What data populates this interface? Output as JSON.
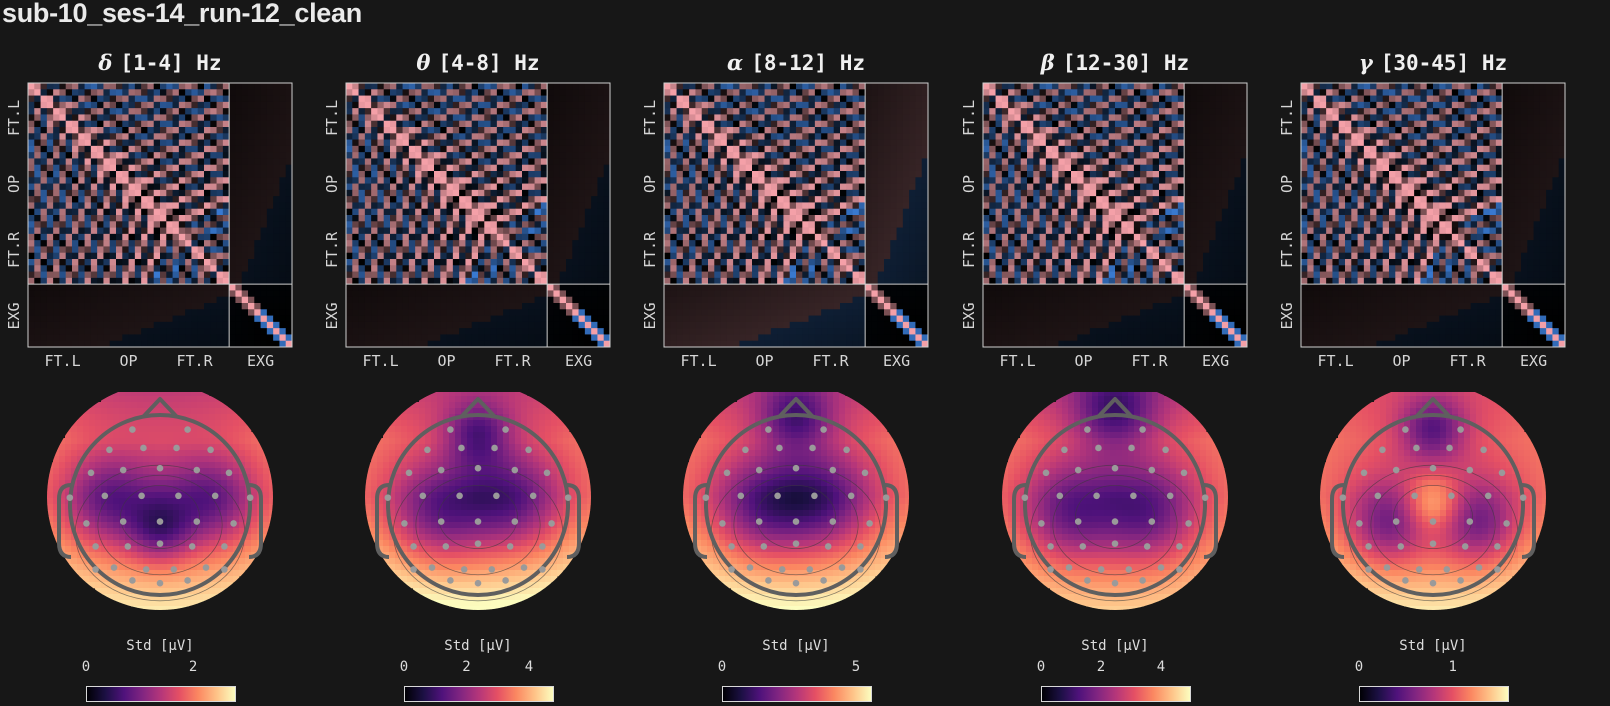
{
  "title": "sub-10_ses-14_run-12_clean",
  "colors": {
    "background": "#171717",
    "corr_positive": "#f4a0a8",
    "corr_negative": "#3f86e6",
    "separator": "#cfcfcf"
  },
  "chart_data": [
    {
      "type": "heatmap",
      "greek": "δ",
      "band": "[1-4] Hz",
      "y_groups": [
        "FT.L",
        "OP",
        "FT.R",
        "EXG"
      ],
      "x_groups": [
        "FT.L",
        "OP",
        "FT.R",
        "EXG"
      ],
      "n_eeg_channels": 32,
      "n_exg_channels": 10
    },
    {
      "type": "heatmap",
      "greek": "θ",
      "band": "[4-8] Hz",
      "y_groups": [
        "FT.L",
        "OP",
        "FT.R",
        "EXG"
      ],
      "x_groups": [
        "FT.L",
        "OP",
        "FT.R",
        "EXG"
      ],
      "n_eeg_channels": 32,
      "n_exg_channels": 10
    },
    {
      "type": "heatmap",
      "greek": "α",
      "band": "[8-12] Hz",
      "y_groups": [
        "FT.L",
        "OP",
        "FT.R",
        "EXG"
      ],
      "x_groups": [
        "FT.L",
        "OP",
        "FT.R",
        "EXG"
      ],
      "n_eeg_channels": 32,
      "n_exg_channels": 10
    },
    {
      "type": "heatmap",
      "greek": "β",
      "band": "[12-30] Hz",
      "y_groups": [
        "FT.L",
        "OP",
        "FT.R",
        "EXG"
      ],
      "x_groups": [
        "FT.L",
        "OP",
        "FT.R",
        "EXG"
      ],
      "n_eeg_channels": 32,
      "n_exg_channels": 10
    },
    {
      "type": "heatmap",
      "greek": "γ",
      "band": "[30-45] Hz",
      "y_groups": [
        "FT.L",
        "OP",
        "FT.R",
        "EXG"
      ],
      "x_groups": [
        "FT.L",
        "OP",
        "FT.R",
        "EXG"
      ],
      "n_eeg_channels": 32,
      "n_exg_channels": 10
    }
  ],
  "topomaps": [
    {
      "colorbar_label": "Std [µV]",
      "ticks": [
        {
          "label": "0",
          "value": 0
        },
        {
          "label": "2",
          "value": 2
        }
      ],
      "vmax": 2.8
    },
    {
      "colorbar_label": "Std [µV]",
      "ticks": [
        {
          "label": "0",
          "value": 0
        },
        {
          "label": "2",
          "value": 2
        },
        {
          "label": "4",
          "value": 4
        }
      ],
      "vmax": 4.8
    },
    {
      "colorbar_label": "Std [µV]",
      "ticks": [
        {
          "label": "0",
          "value": 0
        },
        {
          "label": "5",
          "value": 5
        }
      ],
      "vmax": 5.6
    },
    {
      "colorbar_label": "Std [µV]",
      "ticks": [
        {
          "label": "0",
          "value": 0
        },
        {
          "label": "2",
          "value": 2
        },
        {
          "label": "4",
          "value": 4
        }
      ],
      "vmax": 5.0
    },
    {
      "colorbar_label": "Std [µV]",
      "ticks": [
        {
          "label": "0",
          "value": 0
        },
        {
          "label": "1",
          "value": 1
        }
      ],
      "vmax": 1.6
    }
  ]
}
